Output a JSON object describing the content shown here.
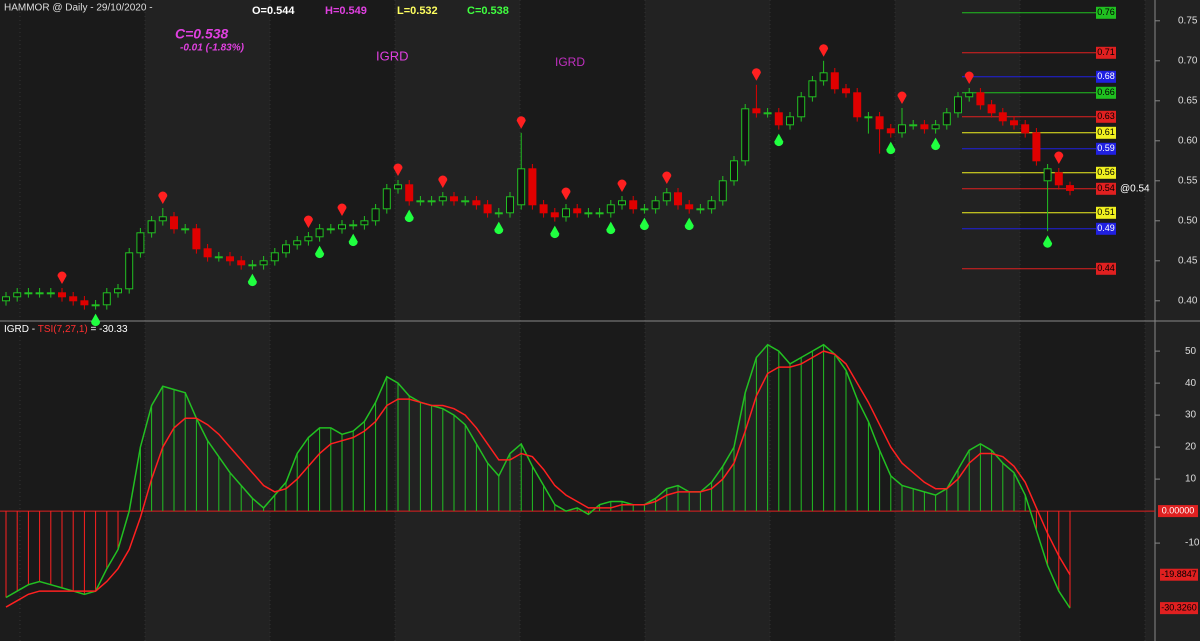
{
  "chart_data": [
    {
      "type": "candlestick",
      "title": "HAMMOR @ Daily - 29/10/2020 -",
      "ohlc_labels": [
        {
          "text": "O=0.544",
          "color": "#ffffff"
        },
        {
          "text": "H=0.549",
          "color": "#e040e0"
        },
        {
          "text": "L=0.532",
          "color": "#ffff60"
        },
        {
          "text": "C=0.538",
          "color": "#40ff40"
        }
      ],
      "close_label": "C=0.538",
      "change_label": "-0.01 (-1.83%)",
      "annotations": [
        "IGRD",
        "IGRD"
      ],
      "last_price_label": "@0.54",
      "up_color": "#22c022",
      "down_color": "#e00000",
      "open": [
        0.4,
        0.405,
        0.41,
        0.41,
        0.41,
        0.41,
        0.405,
        0.4,
        0.395,
        0.395,
        0.41,
        0.415,
        0.46,
        0.485,
        0.5,
        0.505,
        0.49,
        0.49,
        0.465,
        0.455,
        0.455,
        0.45,
        0.445,
        0.445,
        0.45,
        0.46,
        0.47,
        0.475,
        0.48,
        0.49,
        0.49,
        0.495,
        0.495,
        0.5,
        0.515,
        0.54,
        0.545,
        0.525,
        0.525,
        0.525,
        0.53,
        0.525,
        0.525,
        0.52,
        0.51,
        0.51,
        0.52,
        0.565,
        0.52,
        0.51,
        0.505,
        0.515,
        0.51,
        0.51,
        0.51,
        0.52,
        0.525,
        0.515,
        0.515,
        0.525,
        0.535,
        0.52,
        0.515,
        0.515,
        0.525,
        0.55,
        0.575,
        0.64,
        0.635,
        0.635,
        0.62,
        0.63,
        0.655,
        0.675,
        0.685,
        0.665,
        0.66,
        0.63,
        0.63,
        0.615,
        0.61,
        0.62,
        0.62,
        0.615,
        0.62,
        0.635,
        0.655,
        0.66,
        0.645,
        0.635,
        0.625,
        0.62,
        0.61,
        0.55,
        0.56,
        0.544
      ],
      "high": [
        0.411,
        0.416,
        0.416,
        0.416,
        0.416,
        0.416,
        0.411,
        0.406,
        0.401,
        0.416,
        0.421,
        0.466,
        0.491,
        0.506,
        0.516,
        0.511,
        0.496,
        0.496,
        0.471,
        0.461,
        0.461,
        0.456,
        0.451,
        0.456,
        0.466,
        0.476,
        0.481,
        0.486,
        0.496,
        0.496,
        0.501,
        0.501,
        0.506,
        0.521,
        0.546,
        0.551,
        0.551,
        0.531,
        0.531,
        0.536,
        0.536,
        0.531,
        0.531,
        0.526,
        0.516,
        0.536,
        0.61,
        0.571,
        0.526,
        0.516,
        0.521,
        0.521,
        0.516,
        0.516,
        0.526,
        0.531,
        0.531,
        0.521,
        0.531,
        0.541,
        0.541,
        0.526,
        0.521,
        0.531,
        0.556,
        0.581,
        0.646,
        0.67,
        0.641,
        0.641,
        0.636,
        0.661,
        0.681,
        0.7,
        0.691,
        0.671,
        0.666,
        0.636,
        0.636,
        0.621,
        0.641,
        0.626,
        0.626,
        0.626,
        0.641,
        0.661,
        0.666,
        0.666,
        0.651,
        0.641,
        0.631,
        0.626,
        0.616,
        0.571,
        0.566,
        0.549
      ],
      "low": [
        0.394,
        0.399,
        0.404,
        0.404,
        0.404,
        0.399,
        0.394,
        0.389,
        0.389,
        0.389,
        0.404,
        0.409,
        0.454,
        0.479,
        0.494,
        0.484,
        0.484,
        0.459,
        0.449,
        0.449,
        0.444,
        0.439,
        0.439,
        0.439,
        0.444,
        0.454,
        0.464,
        0.469,
        0.474,
        0.484,
        0.484,
        0.489,
        0.489,
        0.494,
        0.509,
        0.534,
        0.519,
        0.519,
        0.519,
        0.519,
        0.519,
        0.519,
        0.514,
        0.504,
        0.504,
        0.504,
        0.514,
        0.514,
        0.504,
        0.499,
        0.499,
        0.504,
        0.504,
        0.504,
        0.504,
        0.514,
        0.509,
        0.509,
        0.509,
        0.519,
        0.514,
        0.509,
        0.509,
        0.509,
        0.519,
        0.544,
        0.569,
        0.629,
        0.629,
        0.614,
        0.614,
        0.624,
        0.649,
        0.669,
        0.659,
        0.654,
        0.624,
        0.609,
        0.584,
        0.604,
        0.604,
        0.614,
        0.609,
        0.609,
        0.614,
        0.629,
        0.649,
        0.639,
        0.629,
        0.619,
        0.614,
        0.604,
        0.569,
        0.487,
        0.539,
        0.532
      ],
      "close": [
        0.405,
        0.41,
        0.41,
        0.41,
        0.41,
        0.405,
        0.4,
        0.395,
        0.395,
        0.41,
        0.415,
        0.46,
        0.485,
        0.5,
        0.505,
        0.49,
        0.49,
        0.465,
        0.455,
        0.455,
        0.45,
        0.445,
        0.445,
        0.45,
        0.46,
        0.47,
        0.475,
        0.48,
        0.49,
        0.49,
        0.495,
        0.495,
        0.5,
        0.515,
        0.54,
        0.545,
        0.525,
        0.525,
        0.525,
        0.53,
        0.525,
        0.525,
        0.52,
        0.51,
        0.51,
        0.53,
        0.565,
        0.52,
        0.51,
        0.505,
        0.515,
        0.51,
        0.51,
        0.51,
        0.52,
        0.525,
        0.515,
        0.515,
        0.525,
        0.535,
        0.52,
        0.515,
        0.515,
        0.525,
        0.55,
        0.575,
        0.64,
        0.635,
        0.635,
        0.62,
        0.63,
        0.655,
        0.675,
        0.685,
        0.665,
        0.66,
        0.63,
        0.63,
        0.615,
        0.61,
        0.62,
        0.62,
        0.615,
        0.62,
        0.635,
        0.655,
        0.66,
        0.645,
        0.635,
        0.625,
        0.62,
        0.61,
        0.575,
        0.565,
        0.545,
        0.538
      ],
      "sell_signals": [
        5,
        14,
        27,
        30,
        35,
        39,
        46,
        50,
        55,
        59,
        67,
        73,
        80,
        86,
        94
      ],
      "buy_signals": [
        8,
        22,
        28,
        31,
        36,
        44,
        49,
        54,
        57,
        61,
        69,
        79,
        83,
        93
      ],
      "levels": [
        {
          "value": 0.76,
          "color": "#20c020"
        },
        {
          "value": 0.71,
          "color": "#e02020"
        },
        {
          "value": 0.68,
          "color": "#2020e0"
        },
        {
          "value": 0.66,
          "color": "#20c020"
        },
        {
          "value": 0.63,
          "color": "#e02020"
        },
        {
          "value": 0.61,
          "color": "#f0f020"
        },
        {
          "value": 0.59,
          "color": "#2020e0"
        },
        {
          "value": 0.56,
          "color": "#f0f020"
        },
        {
          "value": 0.54,
          "color": "#e02020"
        },
        {
          "value": 0.51,
          "color": "#f0f020"
        },
        {
          "value": 0.49,
          "color": "#2020e0"
        },
        {
          "value": 0.44,
          "color": "#e02020"
        }
      ],
      "ylim": [
        0.376,
        0.776
      ],
      "yticks": [
        {
          "value": 0.4,
          "label": "0.40"
        },
        0.45,
        {
          "value": 0.5,
          "label": "0.50"
        },
        0.55,
        {
          "value": 0.6,
          "label": "0.60"
        },
        0.65,
        {
          "value": 0.7,
          "label": "0.70"
        },
        0.75
      ]
    },
    {
      "type": "tsi",
      "title_parts": [
        {
          "text": "IGRD - ",
          "color": "#ffffff"
        },
        {
          "text": "TSI(7,27,1)",
          "color": "#ff3030"
        },
        {
          "text": " = -30.33",
          "color": "#ffffff"
        }
      ],
      "zero_label": {
        "value": 0,
        "label": "0.00000"
      },
      "series": [
        {
          "color": "#22c022",
          "values": [
            -27,
            -25,
            -23,
            -22,
            -23,
            -24,
            -25,
            -26,
            -25,
            -18,
            -12,
            0,
            20,
            33,
            39,
            38,
            37,
            29,
            22,
            17,
            12,
            8,
            4,
            1,
            5,
            9,
            18,
            23,
            26,
            26,
            24,
            25,
            28,
            34,
            42,
            40,
            36,
            34,
            33,
            32,
            30,
            27,
            21,
            15,
            11,
            18,
            21,
            14,
            8,
            2,
            0,
            1,
            -1,
            2,
            3,
            3,
            2,
            2,
            4,
            7,
            8,
            6,
            6,
            9,
            14,
            20,
            37,
            48,
            52,
            50,
            46,
            48,
            50,
            52,
            49,
            44,
            35,
            28,
            19,
            11,
            8,
            7,
            6,
            5,
            7,
            13,
            19,
            21,
            19,
            15,
            12,
            5,
            -6,
            -17,
            -25,
            -30.326
          ],
          "end_label": "-30.3260"
        },
        {
          "color": "#ff2020",
          "values": [
            -30,
            -28,
            -26,
            -25,
            -25,
            -25,
            -25,
            -25,
            -25,
            -22,
            -18,
            -12,
            -2,
            10,
            20,
            26,
            29,
            29,
            27,
            24,
            20,
            16,
            12,
            8,
            6,
            7,
            10,
            14,
            18,
            21,
            22,
            23,
            25,
            28,
            33,
            35,
            35,
            34,
            33,
            33,
            32,
            30,
            26,
            21,
            16,
            16,
            18,
            17,
            13,
            8,
            5,
            3,
            1,
            1,
            1,
            2,
            2,
            2,
            3,
            5,
            6,
            6,
            6,
            7,
            10,
            15,
            25,
            36,
            43,
            45,
            45,
            46,
            48,
            50,
            49,
            46,
            40,
            34,
            27,
            20,
            15,
            12,
            9,
            7,
            7,
            10,
            15,
            18,
            18,
            17,
            14,
            9,
            1,
            -7,
            -14,
            -19.8847
          ],
          "end_label": "-19.8847"
        }
      ],
      "ylim": [
        -40.6,
        59.1
      ],
      "yticks": [
        -10,
        10,
        20,
        30,
        40,
        50
      ]
    }
  ]
}
